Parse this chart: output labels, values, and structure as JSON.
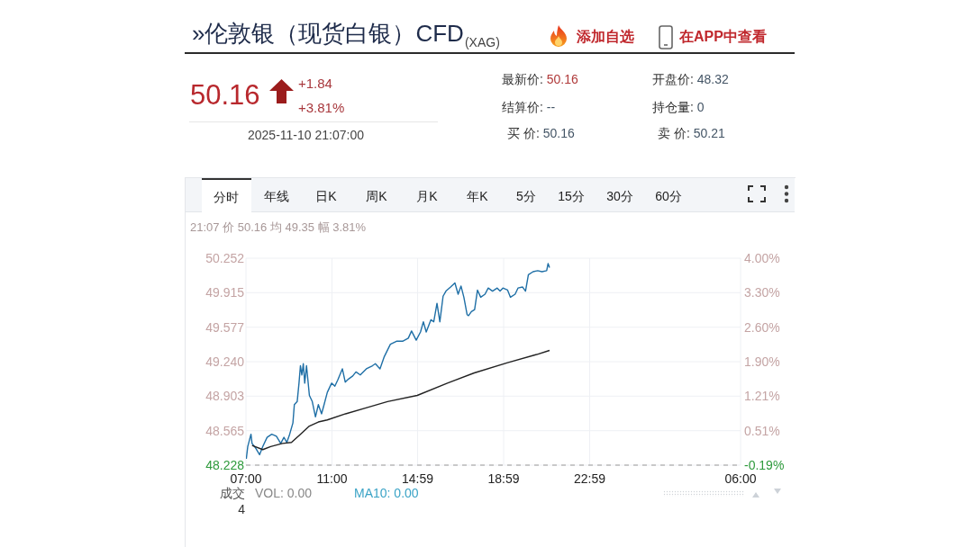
{
  "chart_data": {
    "type": "line",
    "title": "»伦敦银（现货白银）CFD$_{(XAG)}$",
    "annotations": [
      "添加自选",
      "在APP中查看",
      "50.16",
      "+1.84",
      "+3.81%",
      "2025-11-10 21:07:00",
      "最新价: 50.16",
      "结算价: --",
      "买 价: 50.16",
      "开盘价: 48.32",
      "持仓量: 0",
      "卖 价: 50.21",
      "分时",
      "年线",
      "日K",
      "周K",
      "月K",
      "年K",
      "5分",
      "15分",
      "30分",
      "60分",
      "21:07 价 50.16 均 49.35 幅 3.81%",
      "成交",
      "4",
      "VOL: 0.00",
      "MA10: 0.00"
    ],
    "series": [
      {
        "color": "#1f6fa6",
        "x": [
          "2025-11-10T07:01",
          "2025-11-10T07:05",
          "2025-11-10T07:14",
          "2025-11-10T07:17",
          "2025-11-10T07:26",
          "2025-11-10T07:38",
          "2025-11-10T07:47",
          "2025-11-10T07:59",
          "2025-11-10T08:12",
          "2025-11-10T08:25",
          "2025-11-10T08:37",
          "2025-11-10T08:46",
          "2025-11-10T08:54",
          "2025-11-10T09:02",
          "2025-11-10T09:11",
          "2025-11-10T09:15",
          "2025-11-10T09:23",
          "2025-11-10T09:28",
          "2025-11-10T09:32",
          "2025-11-10T09:36",
          "2025-11-10T09:40",
          "2025-11-10T09:44",
          "2025-11-10T09:49",
          "2025-11-10T09:57",
          "2025-11-10T10:05",
          "2025-11-10T10:14",
          "2025-11-10T10:22",
          "2025-11-10T10:31",
          "2025-11-10T10:38",
          "2025-11-10T10:47",
          "2025-11-10T10:59",
          "2025-11-10T11:08",
          "2025-11-10T11:16",
          "2025-11-10T11:29",
          "2025-11-10T11:37",
          "2025-11-10T11:46",
          "2025-11-10T11:58",
          "2025-11-10T12:07",
          "2025-11-10T12:19",
          "2025-11-10T12:36",
          "2025-11-10T12:53",
          "2025-11-10T13:01",
          "2025-11-10T13:14",
          "2025-11-10T13:26",
          "2025-11-10T13:43",
          "2025-11-10T14:00",
          "2025-11-10T14:17",
          "2025-11-10T14:33",
          "2025-11-10T14:42",
          "2025-11-10T14:55",
          "2025-11-10T15:07",
          "2025-11-10T15:15",
          "2025-11-10T15:23",
          "2025-11-10T15:36",
          "2025-11-10T15:44",
          "2025-11-10T15:53",
          "2025-11-10T16:01",
          "2025-11-10T16:10",
          "2025-11-10T16:18",
          "2025-11-10T16:31",
          "2025-11-10T16:43",
          "2025-11-10T16:52",
          "2025-11-10T17:00",
          "2025-11-10T17:08",
          "2025-11-10T17:17",
          "2025-11-10T17:21",
          "2025-11-10T17:29",
          "2025-11-10T17:38",
          "2025-11-10T17:46",
          "2025-11-10T17:55",
          "2025-11-10T18:07",
          "2025-11-10T18:16",
          "2025-11-10T18:28",
          "2025-11-10T18:41",
          "2025-11-10T18:49",
          "2025-11-10T18:57",
          "2025-11-10T19:10",
          "2025-11-10T19:18",
          "2025-11-10T19:31",
          "2025-11-10T19:39",
          "2025-11-10T19:52",
          "2025-11-10T20:00",
          "2025-11-10T20:08",
          "2025-11-10T20:21",
          "2025-11-10T20:34",
          "2025-11-10T20:46",
          "2025-11-10T20:59",
          "2025-11-10T21:03",
          "2025-11-10T21:07"
        ],
        "values": [
          48.29,
          48.41,
          48.53,
          48.44,
          48.4,
          48.33,
          48.41,
          48.5,
          48.53,
          48.51,
          48.44,
          48.5,
          48.45,
          48.53,
          48.64,
          48.82,
          48.85,
          49.03,
          49.2,
          49.11,
          49.22,
          49.03,
          49.2,
          48.91,
          48.85,
          48.7,
          48.82,
          48.73,
          48.82,
          48.94,
          49.03,
          49.0,
          49.06,
          49.17,
          49.04,
          49.07,
          49.1,
          49.14,
          49.11,
          49.17,
          49.2,
          49.22,
          49.17,
          49.29,
          49.41,
          49.44,
          49.44,
          49.47,
          49.54,
          49.45,
          49.53,
          49.63,
          49.53,
          49.65,
          49.63,
          49.81,
          49.63,
          49.88,
          49.93,
          49.97,
          50.01,
          49.9,
          49.98,
          49.87,
          49.7,
          49.69,
          49.73,
          49.75,
          49.94,
          49.87,
          49.9,
          49.96,
          49.93,
          49.96,
          49.93,
          49.96,
          49.94,
          49.87,
          49.9,
          49.96,
          49.97,
          49.93,
          50.09,
          50.12,
          50.13,
          50.12,
          50.13,
          50.2,
          50.16
        ]
      },
      {
        "color": "#222222",
        "x": [
          "2025-11-10T07:17",
          "2025-11-10T07:47",
          "2025-11-10T08:09",
          "2025-11-10T08:42",
          "2025-11-10T09:07",
          "2025-11-10T09:32",
          "2025-11-10T09:57",
          "2025-11-10T10:22",
          "2025-11-10T10:47",
          "2025-11-10T11:38",
          "2025-11-10T12:37",
          "2025-11-10T13:35",
          "2025-11-10T14:58",
          "2025-11-10T16:22",
          "2025-11-10T17:37",
          "2025-11-10T19:10",
          "2025-11-10T20:31",
          "2025-11-10T21:07"
        ],
        "values": [
          48.42,
          48.38,
          48.41,
          48.44,
          48.45,
          48.53,
          48.61,
          48.65,
          48.67,
          48.73,
          48.79,
          48.85,
          48.91,
          49.03,
          49.13,
          49.23,
          49.31,
          49.35
        ]
      }
    ],
    "xlim": [
      "2025-11-10T07:00",
      "2025-11-11T06:00"
    ],
    "xticks": [
      {
        "value": "2025-11-10T07:00",
        "label": "07:00"
      },
      {
        "value": "2025-11-10T11:00",
        "label": "11:00"
      },
      {
        "value": "2025-11-10T14:59",
        "label": "14:59"
      },
      {
        "value": "2025-11-10T18:59",
        "label": "18:59"
      },
      {
        "value": "2025-11-10T22:59",
        "label": "22:59"
      },
      {
        "value": "2025-11-11T06:00",
        "label": "06:00"
      }
    ],
    "ylim": [
      48.228,
      50.252
    ],
    "yticks": [
      48.228,
      48.565,
      48.903,
      {
        "value": 49.24,
        "label": "49.240"
      },
      49.577,
      49.915,
      50.252
    ],
    "y2lim": [
      -0.19,
      4.0
    ],
    "y2ticks": [
      {
        "value": -0.19,
        "label": "-0.19%"
      },
      {
        "value": 0.51,
        "label": "0.51%"
      },
      {
        "value": 1.21,
        "label": "1.21%"
      },
      {
        "value": 1.9,
        "label": "1.90%"
      },
      {
        "value": 2.6,
        "label": "2.60%"
      },
      {
        "value": 3.3,
        "label": "3.30%"
      },
      {
        "value": 4.0,
        "label": "4.00%"
      }
    ],
    "grid": true
  }
}
